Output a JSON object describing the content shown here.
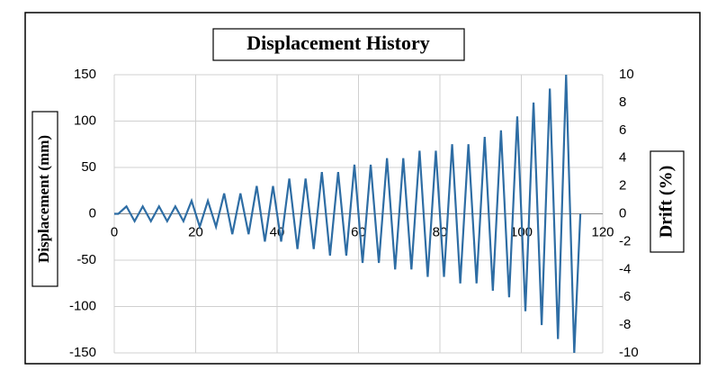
{
  "chart_data": {
    "type": "line",
    "title": "Displacement History",
    "ylabel": "Displacement  (mm)",
    "y2label": "Drift (%)",
    "x": [
      0,
      1,
      3,
      5,
      7,
      9,
      11,
      13,
      15,
      17,
      19,
      21,
      23,
      25,
      27,
      29,
      31,
      33,
      35,
      37,
      39,
      41,
      43,
      45,
      47,
      49,
      51,
      53,
      55,
      57,
      59,
      61,
      63,
      65,
      67,
      69,
      71,
      73,
      75,
      77,
      79,
      81,
      83,
      85,
      87,
      89,
      91,
      93,
      95,
      97,
      99,
      101,
      103,
      105,
      107,
      109,
      111,
      113,
      114.5
    ],
    "values": [
      0,
      0,
      8,
      -8,
      8,
      -8,
      8,
      -8,
      8,
      -8,
      14,
      -14,
      14,
      -14,
      22,
      -22,
      22,
      -22,
      30,
      -30,
      30,
      -30,
      38,
      -38,
      38,
      -38,
      45,
      -45,
      45,
      -45,
      53,
      -53,
      53,
      -53,
      60,
      -60,
      60,
      -60,
      68,
      -68,
      68,
      -68,
      75,
      -75,
      75,
      -75,
      83,
      -83,
      90,
      -90,
      105,
      -105,
      120,
      -120,
      135,
      -135,
      150,
      -150,
      0
    ],
    "color": "#2e6da4",
    "xlim": [
      0,
      120
    ],
    "xticks": [
      0,
      20,
      40,
      60,
      80,
      100,
      120
    ],
    "ylim": [
      -150,
      150
    ],
    "yticks": [
      -150,
      -100,
      -50,
      0,
      50,
      100,
      150
    ],
    "y2lim": [
      -10,
      10
    ],
    "y2ticks": [
      -10,
      -8,
      -6,
      -4,
      -2,
      0,
      2,
      4,
      6,
      8,
      10
    ],
    "grid": true
  }
}
